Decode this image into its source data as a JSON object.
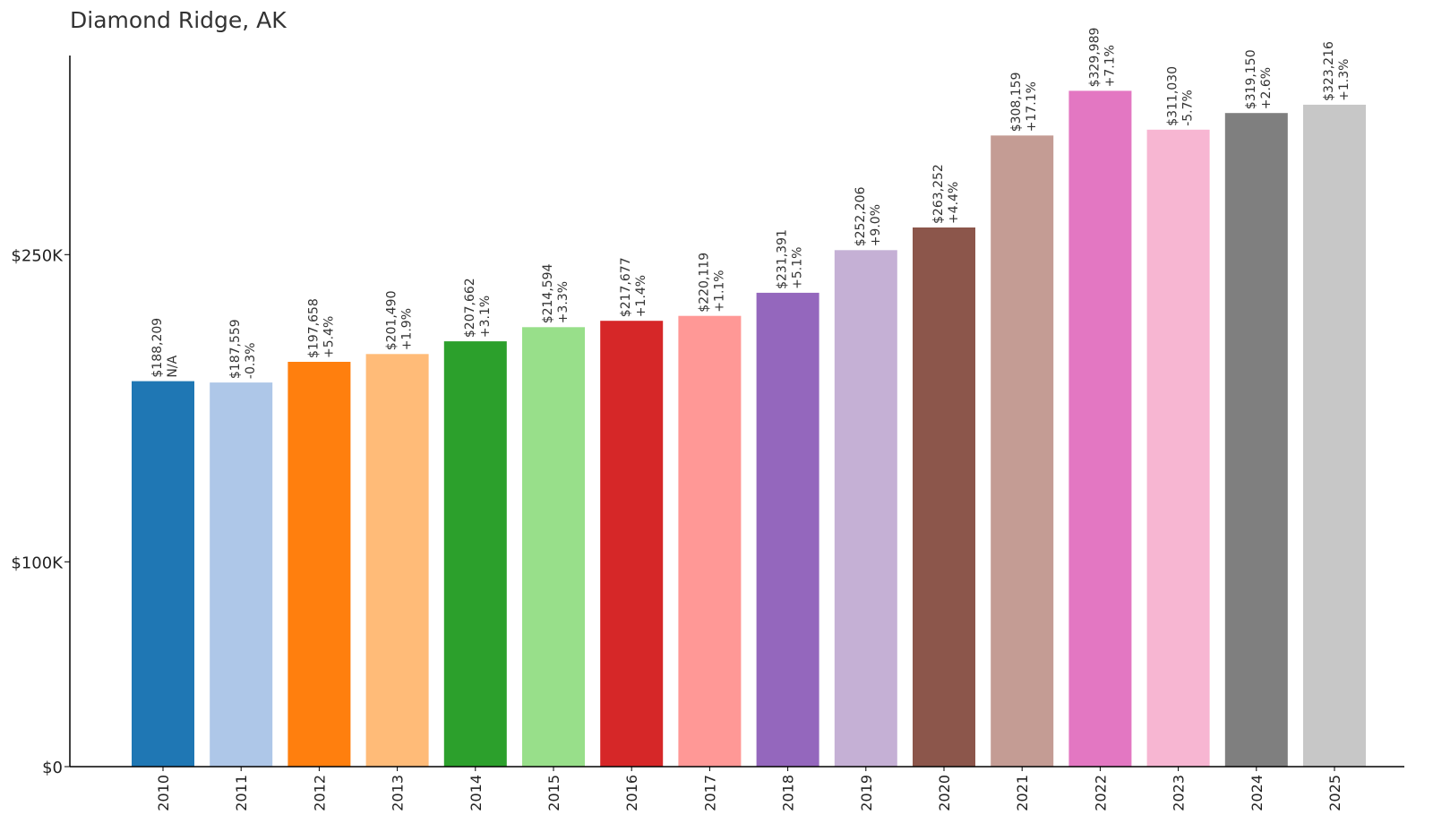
{
  "chart_data": {
    "type": "bar",
    "title": "Diamond Ridge, AK",
    "xlabel": "",
    "ylabel": "",
    "ylim": [
      0,
      350000
    ],
    "y_ticks": [
      {
        "value": 0,
        "label": "$0"
      },
      {
        "value": 100000,
        "label": "$100K"
      },
      {
        "value": 250000,
        "label": "$250K"
      }
    ],
    "categories": [
      "2010",
      "2011",
      "2012",
      "2013",
      "2014",
      "2015",
      "2016",
      "2017",
      "2018",
      "2019",
      "2020",
      "2021",
      "2022",
      "2023",
      "2024",
      "2025"
    ],
    "values": [
      188209,
      187559,
      197658,
      201490,
      207662,
      214594,
      217677,
      220119,
      231391,
      252206,
      263252,
      308159,
      329989,
      311030,
      319150,
      323216
    ],
    "value_labels": [
      "$188,209",
      "$187,559",
      "$197,658",
      "$201,490",
      "$207,662",
      "$214,594",
      "$217,677",
      "$220,119",
      "$231,391",
      "$252,206",
      "$263,252",
      "$308,159",
      "$329,989",
      "$311,030",
      "$319,150",
      "$323,216"
    ],
    "change_labels": [
      "N/A",
      "-0.3%",
      "+5.4%",
      "+1.9%",
      "+3.1%",
      "+3.3%",
      "+1.4%",
      "+1.1%",
      "+5.1%",
      "+9.0%",
      "+4.4%",
      "+17.1%",
      "+7.1%",
      "-5.7%",
      "+2.6%",
      "+1.3%"
    ],
    "colors": [
      "#1f77b4",
      "#aec7e8",
      "#ff7f0e",
      "#ffbb78",
      "#2ca02c",
      "#98df8a",
      "#d62728",
      "#ff9896",
      "#9467bd",
      "#c5b0d5",
      "#8c564b",
      "#c49c94",
      "#e377c2",
      "#f7b6d2",
      "#7f7f7f",
      "#c7c7c7"
    ],
    "grid": false,
    "legend": "none"
  }
}
